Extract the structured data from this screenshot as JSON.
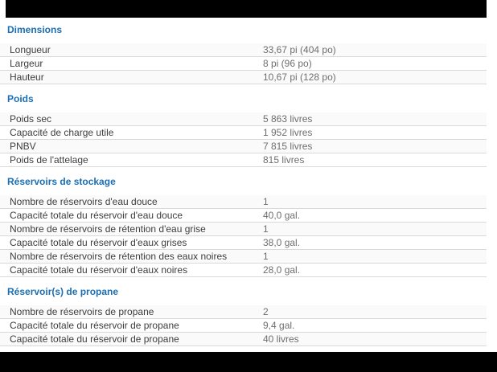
{
  "page": {
    "background": "#ffffff",
    "bar_color": "#000000",
    "heading_color": "#1b6fb5",
    "label_color": "#3d3d3d",
    "value_color": "#6e6e6e",
    "divider_color": "#d9d9d9",
    "alt_row_color": "#fafafa"
  },
  "sections": [
    {
      "title": "Dimensions",
      "rows": [
        {
          "label": "Longueur",
          "value": "33,67 pi (404 po)"
        },
        {
          "label": "Largeur",
          "value": "8 pi (96 po)"
        },
        {
          "label": "Hauteur",
          "value": "10,67 pi (128 po)"
        }
      ]
    },
    {
      "title": "Poids",
      "rows": [
        {
          "label": "Poids sec",
          "value": "5 863 livres"
        },
        {
          "label": "Capacité de charge utile",
          "value": "1 952 livres"
        },
        {
          "label": "PNBV",
          "value": "7 815 livres"
        },
        {
          "label": "Poids de l'attelage",
          "value": "815 livres"
        }
      ]
    },
    {
      "title": "Réservoirs de stockage",
      "rows": [
        {
          "label": "Nombre de réservoirs d'eau douce",
          "value": "1"
        },
        {
          "label": "Capacité totale du réservoir d'eau douce",
          "value": "40,0 gal."
        },
        {
          "label": "Nombre de réservoirs de rétention d'eau grise",
          "value": "1"
        },
        {
          "label": "Capacité totale du réservoir d'eaux grises",
          "value": "38,0 gal."
        },
        {
          "label": "Nombre de réservoirs de rétention des eaux noires",
          "value": "1"
        },
        {
          "label": "Capacité totale du réservoir d'eaux noires",
          "value": "28,0 gal."
        }
      ]
    },
    {
      "title": "Réservoir(s) de propane",
      "rows": [
        {
          "label": "Nombre de réservoirs de propane",
          "value": "2"
        },
        {
          "label": "Capacité totale du réservoir de propane",
          "value": "9,4 gal."
        },
        {
          "label": "Capacité totale du réservoir de propane",
          "value": "40 livres"
        }
      ]
    }
  ]
}
